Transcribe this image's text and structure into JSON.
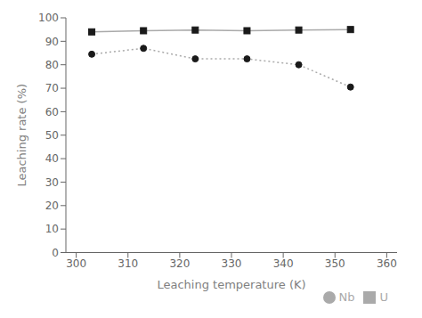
{
  "chart_data": {
    "type": "line",
    "xlabel": "Leaching temperature (K)",
    "ylabel": "Leaching rate (%)",
    "x": [
      303,
      313,
      323,
      333,
      343,
      353
    ],
    "series": [
      {
        "name": "U",
        "color": "#1a1a1a",
        "marker": "square",
        "line_style": "solid",
        "values": [
          94.0,
          94.5,
          94.8,
          94.5,
          94.8,
          95.0
        ]
      },
      {
        "name": "Nb",
        "color": "#1a1a1a",
        "marker": "circle",
        "line_style": "dotted",
        "values": [
          84.5,
          87.0,
          82.5,
          82.5,
          80.0,
          70.5
        ]
      }
    ],
    "color": "#aaaaaa",
    "xlim": [
      298,
      362
    ],
    "ylim": [
      0,
      100
    ],
    "xticks": [
      300,
      310,
      320,
      330,
      340,
      350,
      360
    ],
    "yticks": [
      0,
      10,
      20,
      30,
      40,
      50,
      60,
      70,
      80,
      90,
      100
    ],
    "grid": false,
    "legend": "lower right"
  }
}
